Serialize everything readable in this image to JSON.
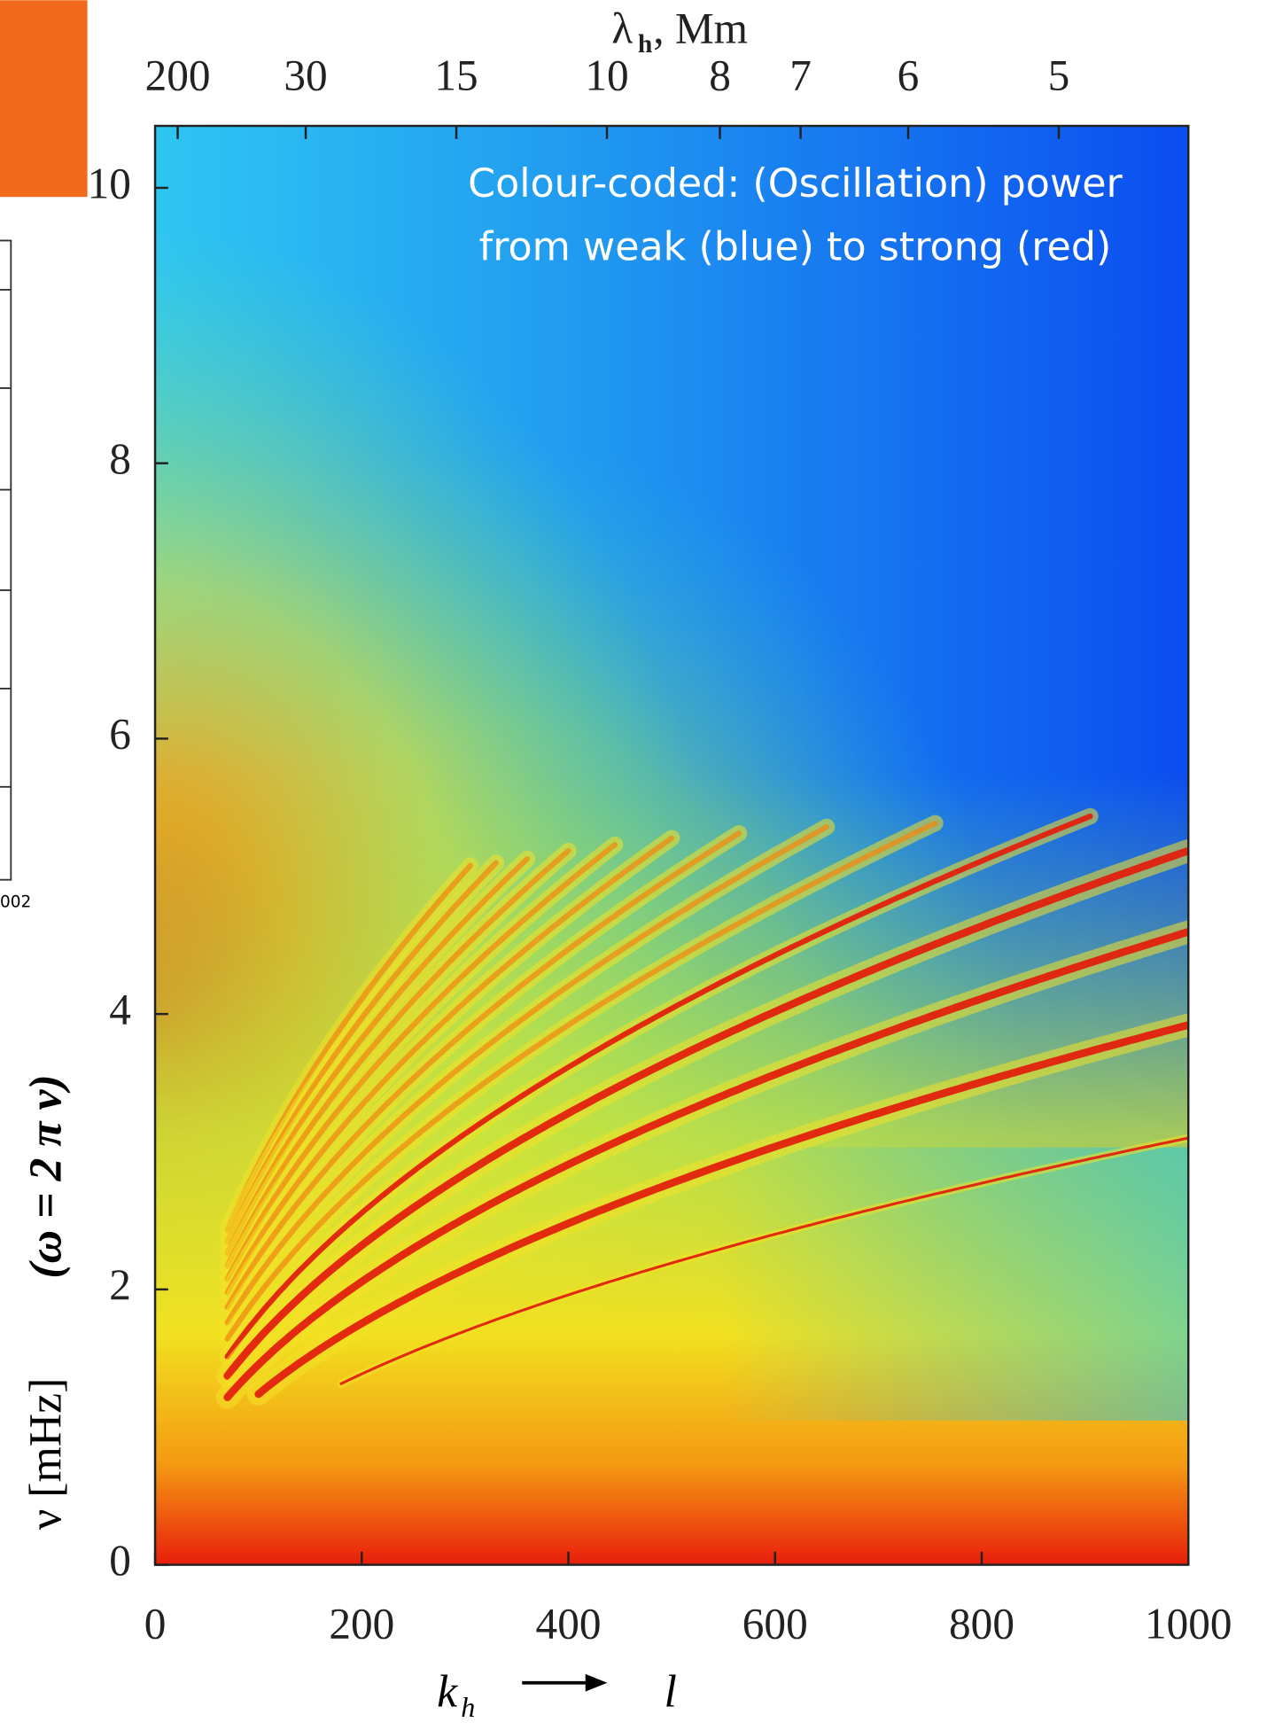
{
  "chart_data": {
    "type": "heatmap",
    "annotation": [
      "Colour-coded: (Oscillation) power",
      "from weak (blue) to strong (red)"
    ],
    "x_label": {
      "symbol": "k",
      "subscript": "h",
      "target": "l"
    },
    "x2_label": {
      "symbol": "λ",
      "subscript": "h",
      "unit": ", Mm"
    },
    "y_label": [
      "ν [mHz]",
      "(ω = 2 π ν)"
    ],
    "xlim": [
      0,
      1000
    ],
    "xticks": [
      0,
      200,
      400,
      600,
      800,
      1000
    ],
    "ylim": [
      0,
      10.45
    ],
    "yticks": [
      0,
      2,
      4,
      6,
      8,
      10
    ],
    "x2ticks": [
      200,
      30,
      15,
      10,
      8,
      7,
      6,
      5
    ],
    "fragment_label": "002",
    "accent_color": "#f26a1b"
  }
}
